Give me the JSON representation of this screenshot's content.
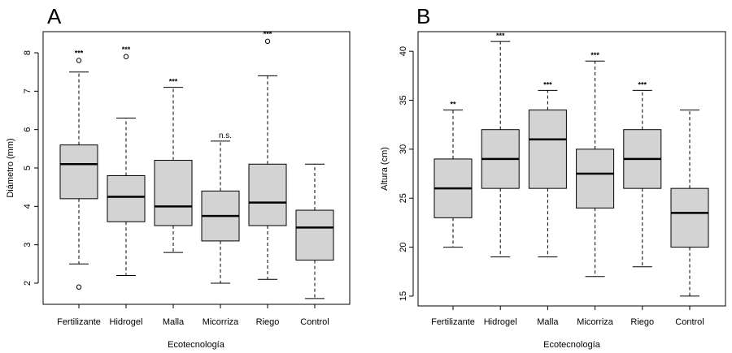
{
  "chart_data": [
    {
      "panel_label": "A",
      "type": "boxplot",
      "xlabel": "Ecotecnología",
      "ylabel": "Diámetro (mm)",
      "ylim": [
        1.45,
        8.55
      ],
      "yticks": [
        2,
        3,
        4,
        5,
        6,
        7,
        8
      ],
      "grid": false,
      "box_color": "#d3d3d3",
      "categories": [
        "Fertilizante",
        "Hidrogel",
        "Malla",
        "Micorriza",
        "Riego",
        "Control"
      ],
      "boxes": [
        {
          "whisker_low": 2.5,
          "q1": 4.2,
          "median": 5.1,
          "q3": 5.6,
          "whisker_high": 7.5,
          "outliers": [
            7.8,
            1.9
          ],
          "significance": "***"
        },
        {
          "whisker_low": 2.2,
          "q1": 3.6,
          "median": 4.25,
          "q3": 4.8,
          "whisker_high": 6.3,
          "outliers": [
            7.9
          ],
          "significance": "***"
        },
        {
          "whisker_low": 2.8,
          "q1": 3.5,
          "median": 4.0,
          "q3": 5.2,
          "whisker_high": 7.1,
          "outliers": [],
          "significance": "***"
        },
        {
          "whisker_low": 2.0,
          "q1": 3.1,
          "median": 3.75,
          "q3": 4.4,
          "whisker_high": 5.7,
          "outliers": [],
          "significance": "n.s."
        },
        {
          "whisker_low": 2.1,
          "q1": 3.5,
          "median": 4.1,
          "q3": 5.1,
          "whisker_high": 7.4,
          "outliers": [
            8.3
          ],
          "significance": "***"
        },
        {
          "whisker_low": 1.6,
          "q1": 2.6,
          "median": 3.45,
          "q3": 3.9,
          "whisker_high": 5.1,
          "outliers": [],
          "significance": ""
        }
      ]
    },
    {
      "panel_label": "B",
      "type": "boxplot",
      "xlabel": "Ecotecnología",
      "ylabel": "Altura (cm)",
      "ylim": [
        14.0,
        42.0
      ],
      "yticks": [
        15,
        20,
        25,
        30,
        35,
        40
      ],
      "grid": false,
      "box_color": "#d3d3d3",
      "categories": [
        "Fertilizante",
        "Hidrogel",
        "Malla",
        "Micorriza",
        "Riego",
        "Control"
      ],
      "boxes": [
        {
          "whisker_low": 20,
          "q1": 23,
          "median": 26,
          "q3": 29,
          "whisker_high": 34,
          "outliers": [],
          "significance": "**"
        },
        {
          "whisker_low": 19,
          "q1": 26,
          "median": 29,
          "q3": 32,
          "whisker_high": 41,
          "outliers": [],
          "significance": "***"
        },
        {
          "whisker_low": 19,
          "q1": 26,
          "median": 31,
          "q3": 34,
          "whisker_high": 36,
          "outliers": [],
          "significance": "***"
        },
        {
          "whisker_low": 17,
          "q1": 24,
          "median": 27.5,
          "q3": 30,
          "whisker_high": 39,
          "outliers": [],
          "significance": "***"
        },
        {
          "whisker_low": 18,
          "q1": 26,
          "median": 29,
          "q3": 32,
          "whisker_high": 36,
          "outliers": [],
          "significance": "***"
        },
        {
          "whisker_low": 15,
          "q1": 20,
          "median": 23.5,
          "q3": 26,
          "whisker_high": 34,
          "outliers": [],
          "significance": ""
        }
      ]
    }
  ]
}
